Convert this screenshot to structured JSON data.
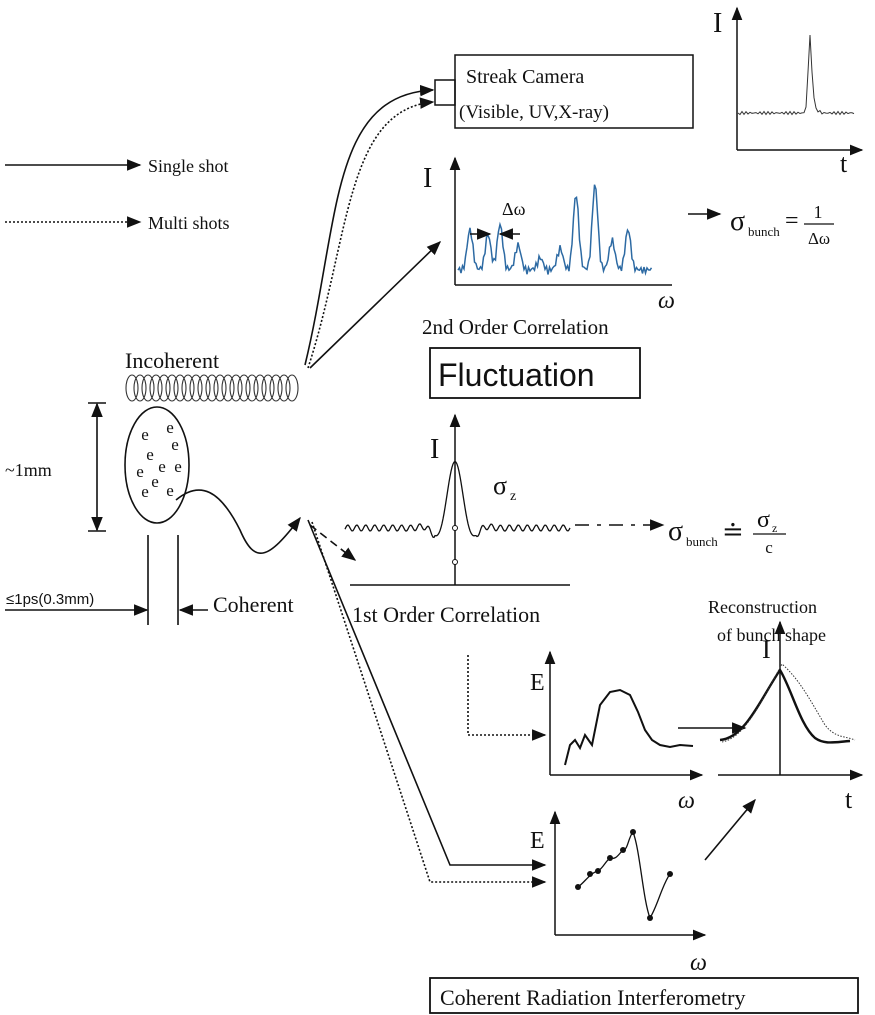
{
  "legend": {
    "single_shot": "Single shot",
    "multi_shots": "Multi shots"
  },
  "streak_camera": {
    "title": "Streak Camera",
    "detail": "(Visible, UV,X-ray)",
    "plot": {
      "y_axis": "I",
      "x_axis": "t"
    }
  },
  "second_order": {
    "y_axis": "I",
    "spacing": "Δω",
    "x_axis": "ω",
    "caption": "2nd Order Correlation",
    "result": {
      "symbol": "σ",
      "subscript": "bunch",
      "relation": "=",
      "numerator": "1",
      "denominator": "Δω"
    }
  },
  "fluctuation": "Fluctuation",
  "bunch": {
    "incoherent": "Incoherent",
    "size": "~1mm",
    "electrons": [
      "e",
      "e",
      "e",
      "e",
      "e",
      "e",
      "e",
      "e",
      "e",
      "e"
    ],
    "length": "≤1ps(0.3mm)",
    "coherent": "Coherent"
  },
  "first_order": {
    "y_axis": "I",
    "width_symbol": "σ",
    "width_subscript": "z",
    "caption": "1st Order Correlation",
    "result": {
      "symbol": "σ",
      "subscript": "bunch",
      "relation": "≐",
      "numerator_symbol": "σ",
      "numerator_subscript": "z",
      "denominator": "c"
    }
  },
  "reconstruction": {
    "line1": "Reconstruction",
    "line2": "of bunch shape",
    "spectrum": {
      "y_axis": "E",
      "x_axis": "ω"
    },
    "shape": {
      "y_axis": "I",
      "x_axis": "t"
    }
  },
  "interferometry": {
    "spectrum": {
      "y_axis": "E",
      "x_axis": "ω"
    },
    "title": "Coherent Radiation Interferometry"
  }
}
